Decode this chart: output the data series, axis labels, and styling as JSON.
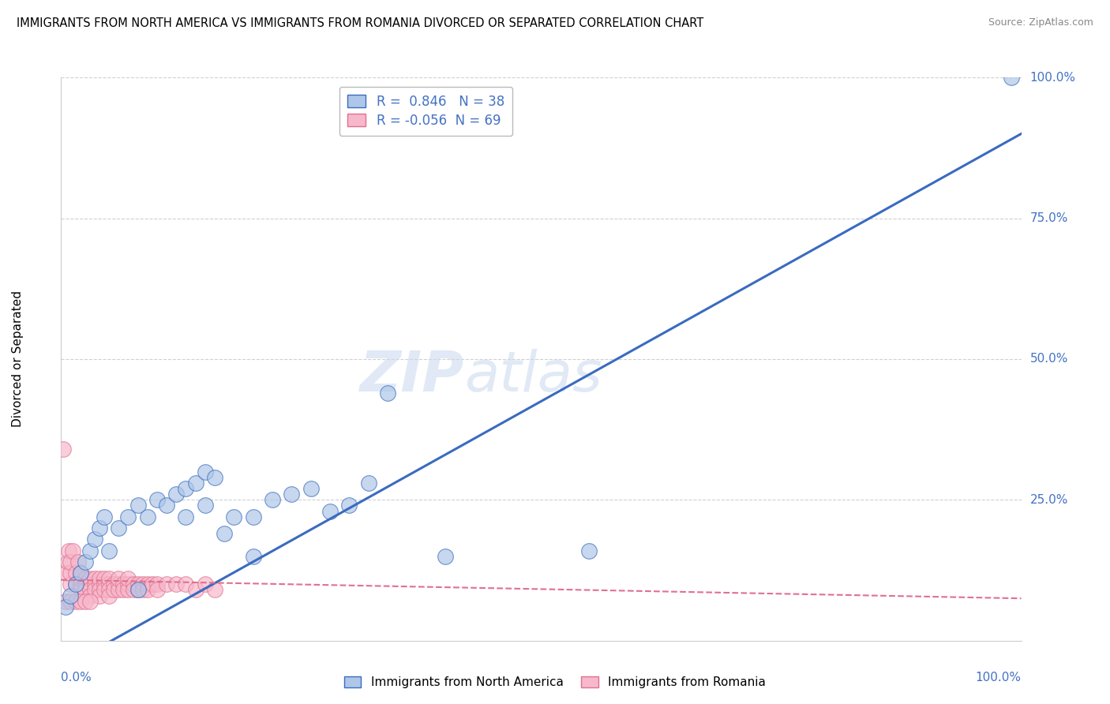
{
  "title": "IMMIGRANTS FROM NORTH AMERICA VS IMMIGRANTS FROM ROMANIA DIVORCED OR SEPARATED CORRELATION CHART",
  "source": "Source: ZipAtlas.com",
  "ylabel": "Divorced or Separated",
  "xlim": [
    0,
    1.0
  ],
  "ylim": [
    0,
    1.0
  ],
  "blue_R": 0.846,
  "blue_N": 38,
  "pink_R": -0.056,
  "pink_N": 69,
  "blue_color": "#aec6e8",
  "pink_color": "#f7b8cb",
  "blue_line_color": "#3a6bbf",
  "pink_line_color": "#e07090",
  "watermark_zip": "ZIP",
  "watermark_atlas": "atlas",
  "blue_scatter": [
    [
      0.005,
      0.06
    ],
    [
      0.01,
      0.08
    ],
    [
      0.015,
      0.1
    ],
    [
      0.02,
      0.12
    ],
    [
      0.025,
      0.14
    ],
    [
      0.03,
      0.16
    ],
    [
      0.035,
      0.18
    ],
    [
      0.04,
      0.2
    ],
    [
      0.045,
      0.22
    ],
    [
      0.05,
      0.16
    ],
    [
      0.06,
      0.2
    ],
    [
      0.07,
      0.22
    ],
    [
      0.08,
      0.24
    ],
    [
      0.09,
      0.22
    ],
    [
      0.1,
      0.25
    ],
    [
      0.11,
      0.24
    ],
    [
      0.12,
      0.26
    ],
    [
      0.13,
      0.27
    ],
    [
      0.14,
      0.28
    ],
    [
      0.15,
      0.3
    ],
    [
      0.16,
      0.29
    ],
    [
      0.17,
      0.19
    ],
    [
      0.18,
      0.22
    ],
    [
      0.2,
      0.22
    ],
    [
      0.22,
      0.25
    ],
    [
      0.24,
      0.26
    ],
    [
      0.26,
      0.27
    ],
    [
      0.28,
      0.23
    ],
    [
      0.3,
      0.24
    ],
    [
      0.32,
      0.28
    ],
    [
      0.34,
      0.44
    ],
    [
      0.13,
      0.22
    ],
    [
      0.15,
      0.24
    ],
    [
      0.2,
      0.15
    ],
    [
      0.4,
      0.15
    ],
    [
      0.55,
      0.16
    ],
    [
      0.08,
      0.09
    ],
    [
      0.99,
      1.0
    ]
  ],
  "pink_scatter": [
    [
      0.002,
      0.34
    ],
    [
      0.005,
      0.12
    ],
    [
      0.007,
      0.14
    ],
    [
      0.008,
      0.16
    ],
    [
      0.01,
      0.1
    ],
    [
      0.01,
      0.12
    ],
    [
      0.01,
      0.14
    ],
    [
      0.012,
      0.16
    ],
    [
      0.015,
      0.1
    ],
    [
      0.015,
      0.12
    ],
    [
      0.018,
      0.14
    ],
    [
      0.02,
      0.1
    ],
    [
      0.02,
      0.11
    ],
    [
      0.02,
      0.09
    ],
    [
      0.02,
      0.12
    ],
    [
      0.025,
      0.1
    ],
    [
      0.025,
      0.11
    ],
    [
      0.025,
      0.09
    ],
    [
      0.03,
      0.1
    ],
    [
      0.03,
      0.11
    ],
    [
      0.03,
      0.09
    ],
    [
      0.03,
      0.08
    ],
    [
      0.035,
      0.1
    ],
    [
      0.035,
      0.11
    ],
    [
      0.035,
      0.09
    ],
    [
      0.04,
      0.1
    ],
    [
      0.04,
      0.11
    ],
    [
      0.04,
      0.09
    ],
    [
      0.04,
      0.08
    ],
    [
      0.045,
      0.1
    ],
    [
      0.045,
      0.11
    ],
    [
      0.045,
      0.09
    ],
    [
      0.05,
      0.1
    ],
    [
      0.05,
      0.11
    ],
    [
      0.05,
      0.09
    ],
    [
      0.05,
      0.08
    ],
    [
      0.055,
      0.1
    ],
    [
      0.055,
      0.09
    ],
    [
      0.06,
      0.1
    ],
    [
      0.06,
      0.09
    ],
    [
      0.06,
      0.11
    ],
    [
      0.065,
      0.1
    ],
    [
      0.065,
      0.09
    ],
    [
      0.07,
      0.1
    ],
    [
      0.07,
      0.09
    ],
    [
      0.07,
      0.11
    ],
    [
      0.075,
      0.1
    ],
    [
      0.075,
      0.09
    ],
    [
      0.08,
      0.1
    ],
    [
      0.08,
      0.09
    ],
    [
      0.085,
      0.1
    ],
    [
      0.085,
      0.09
    ],
    [
      0.09,
      0.1
    ],
    [
      0.09,
      0.09
    ],
    [
      0.095,
      0.1
    ],
    [
      0.1,
      0.1
    ],
    [
      0.1,
      0.09
    ],
    [
      0.11,
      0.1
    ],
    [
      0.12,
      0.1
    ],
    [
      0.13,
      0.1
    ],
    [
      0.14,
      0.09
    ],
    [
      0.15,
      0.1
    ],
    [
      0.16,
      0.09
    ],
    [
      0.005,
      0.07
    ],
    [
      0.01,
      0.07
    ],
    [
      0.015,
      0.07
    ],
    [
      0.02,
      0.07
    ],
    [
      0.025,
      0.07
    ],
    [
      0.03,
      0.07
    ]
  ],
  "blue_line": [
    [
      0.0,
      -0.05
    ],
    [
      1.0,
      0.9
    ]
  ],
  "pink_line": [
    [
      0.0,
      0.108
    ],
    [
      1.0,
      0.075
    ]
  ],
  "background_color": "#ffffff",
  "grid_color": "#d0d0d0",
  "ytick_labels": [
    "25.0%",
    "50.0%",
    "75.0%",
    "100.0%"
  ],
  "ytick_vals": [
    0.25,
    0.5,
    0.75,
    1.0
  ],
  "xtick_edge_labels": [
    "0.0%",
    "100.0%"
  ],
  "xtick_edge_vals": [
    0.0,
    1.0
  ]
}
